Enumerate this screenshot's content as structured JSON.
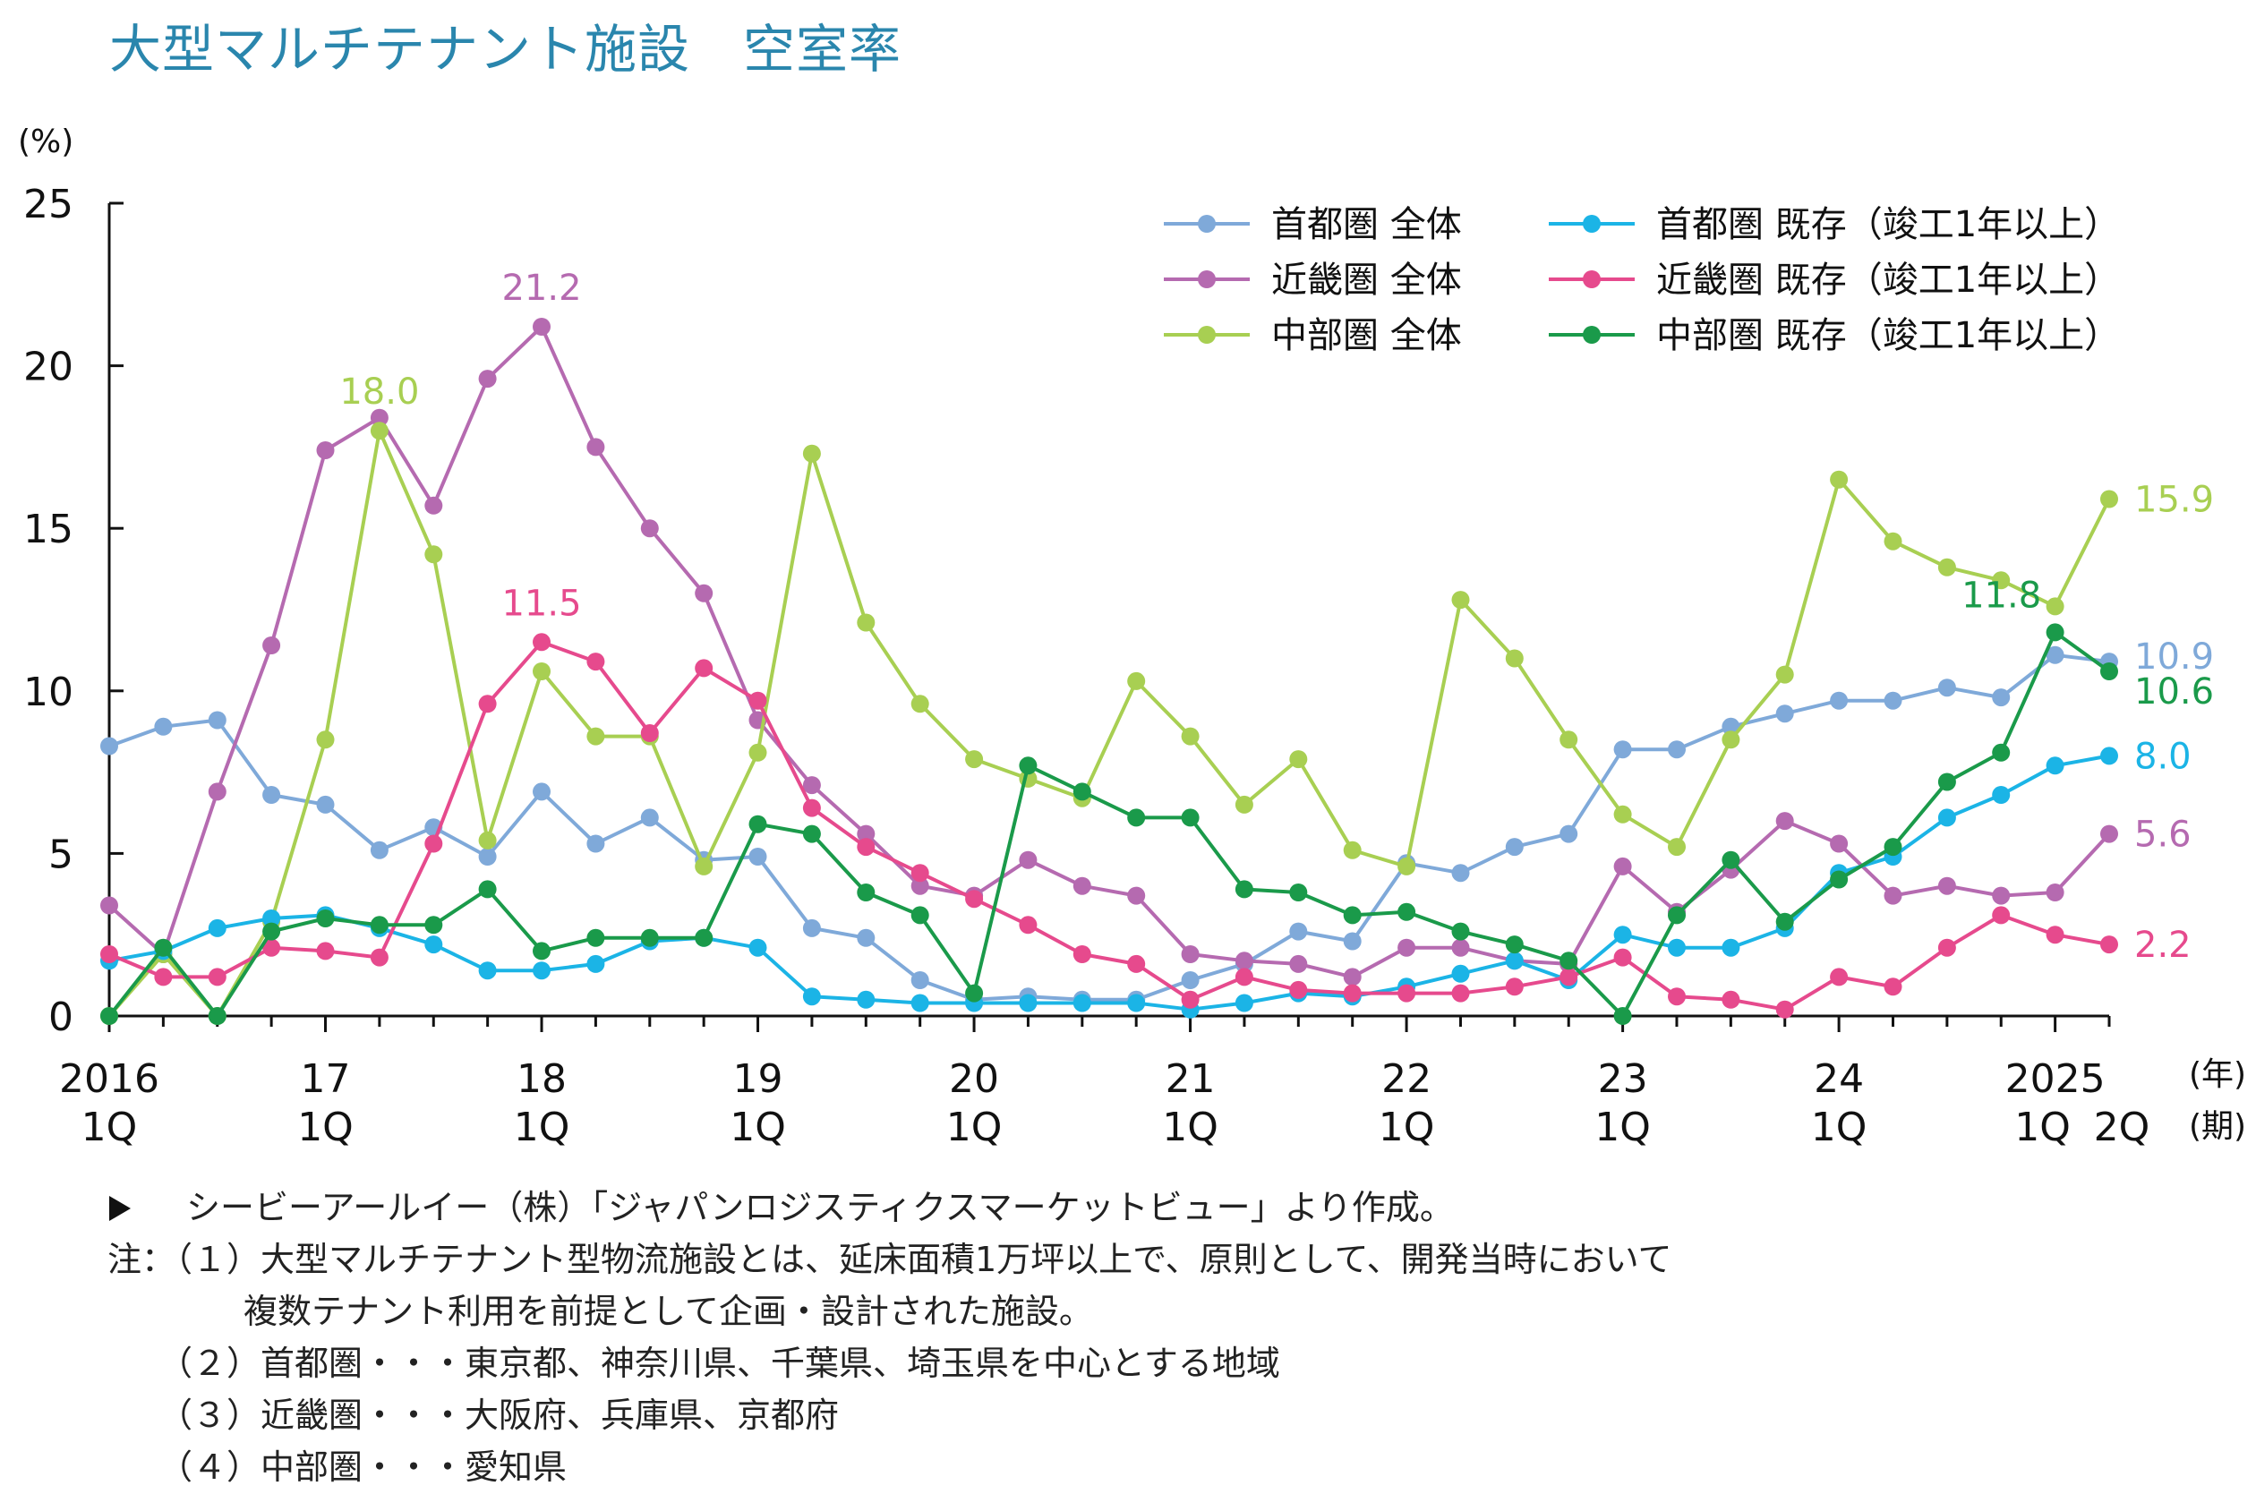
{
  "page_title": "大型マルチテナント施設　空室率",
  "source_line": "シービーアールイー（株）「ジャパンロジスティクスマーケットビュー」より作成。",
  "notes": [
    "注：（１）大型マルチテナント型物流施設とは、延床面積1万坪以上で、原則として、開発当時において",
    "　　　　複数テナント利用を前提として企画・設計された施設。",
    "　　（２）首都圏・・・東京都、神奈川県、千葉県、埼玉県を中心とする地域",
    "　　（３）近畿圏・・・大阪府、兵庫県、京都府",
    "　　（４）中部圏・・・愛知県"
  ],
  "chart_data": {
    "type": "line",
    "title": "大型マルチテナント施設　空室率",
    "ylabel": "(%)",
    "x_unit_year": "(年)",
    "x_unit_quarter": "(期)",
    "ylim": [
      0,
      25
    ],
    "yticks": [
      0,
      5,
      10,
      15,
      20,
      25
    ],
    "x_count": 38,
    "x_tick_labels": [
      {
        "index": 0,
        "year": "2016",
        "quarter": "1Q"
      },
      {
        "index": 4,
        "year": "17",
        "quarter": "1Q"
      },
      {
        "index": 8,
        "year": "18",
        "quarter": "1Q"
      },
      {
        "index": 12,
        "year": "19",
        "quarter": "1Q"
      },
      {
        "index": 16,
        "year": "20",
        "quarter": "1Q"
      },
      {
        "index": 20,
        "year": "21",
        "quarter": "1Q"
      },
      {
        "index": 24,
        "year": "22",
        "quarter": "1Q"
      },
      {
        "index": 28,
        "year": "23",
        "quarter": "1Q"
      },
      {
        "index": 32,
        "year": "24",
        "quarter": "1Q"
      },
      {
        "index": 36,
        "year": "2025",
        "quarter": "1Q"
      },
      {
        "index": 37,
        "year": "",
        "quarter": "2Q"
      }
    ],
    "series": [
      {
        "name": "首都圏 全体",
        "color": "#7fa9d9",
        "values": [
          8.3,
          8.9,
          9.1,
          6.8,
          6.5,
          5.1,
          5.8,
          4.9,
          6.9,
          5.3,
          6.1,
          4.8,
          4.9,
          2.7,
          2.4,
          1.1,
          0.5,
          0.6,
          0.5,
          0.5,
          1.1,
          1.6,
          2.6,
          2.3,
          4.7,
          4.4,
          5.2,
          5.6,
          8.2,
          8.2,
          8.9,
          9.3,
          9.7,
          9.7,
          10.1,
          9.8,
          11.1,
          10.9
        ]
      },
      {
        "name": "近畿圏 全体",
        "color": "#b56ab0",
        "values": [
          3.4,
          1.9,
          6.9,
          11.4,
          17.4,
          18.4,
          15.7,
          19.6,
          21.2,
          17.5,
          15.0,
          13.0,
          9.1,
          7.1,
          5.6,
          4.0,
          3.7,
          4.8,
          4.0,
          3.7,
          1.9,
          1.7,
          1.6,
          1.2,
          2.1,
          2.1,
          1.7,
          1.6,
          4.6,
          3.2,
          4.5,
          6.0,
          5.3,
          3.7,
          4.0,
          3.7,
          3.8,
          5.6
        ]
      },
      {
        "name": "中部圏 全体",
        "color": "#a8cf52",
        "values": [
          0.0,
          1.9,
          0.0,
          2.9,
          8.5,
          18.0,
          14.2,
          5.4,
          10.6,
          8.6,
          8.6,
          4.6,
          8.1,
          17.3,
          12.1,
          9.6,
          7.9,
          7.3,
          6.7,
          10.3,
          8.6,
          6.5,
          7.9,
          5.1,
          4.6,
          12.8,
          11.0,
          8.5,
          6.2,
          5.2,
          8.5,
          10.5,
          16.5,
          14.6,
          13.8,
          13.4,
          12.6,
          15.9
        ]
      },
      {
        "name": "首都圏 既存（竣工1年以上）",
        "color": "#1bb4e6",
        "values": [
          1.7,
          2.0,
          2.7,
          3.0,
          3.1,
          2.7,
          2.2,
          1.4,
          1.4,
          1.6,
          2.3,
          2.4,
          2.1,
          0.6,
          0.5,
          0.4,
          0.4,
          0.4,
          0.4,
          0.4,
          0.2,
          0.4,
          0.7,
          0.6,
          0.9,
          1.3,
          1.7,
          1.1,
          2.5,
          2.1,
          2.1,
          2.7,
          4.4,
          4.9,
          6.1,
          6.8,
          7.7,
          8.0
        ]
      },
      {
        "name": "近畿圏 既存（竣工1年以上）",
        "color": "#e64a8d",
        "values": [
          1.9,
          1.2,
          1.2,
          2.1,
          2.0,
          1.8,
          5.3,
          9.6,
          11.5,
          10.9,
          8.7,
          10.7,
          9.7,
          6.4,
          5.2,
          4.4,
          3.6,
          2.8,
          1.9,
          1.6,
          0.5,
          1.2,
          0.8,
          0.7,
          0.7,
          0.7,
          0.9,
          1.2,
          1.8,
          0.6,
          0.5,
          0.2,
          1.2,
          0.9,
          2.1,
          3.1,
          2.5,
          2.2
        ]
      },
      {
        "name": "中部圏 既存（竣工1年以上）",
        "color": "#1a9a4a",
        "values": [
          0.0,
          2.1,
          0.0,
          2.6,
          3.0,
          2.8,
          2.8,
          3.9,
          2.0,
          2.4,
          2.4,
          2.4,
          5.9,
          5.6,
          3.8,
          3.1,
          0.7,
          7.7,
          6.9,
          6.1,
          6.1,
          3.9,
          3.8,
          3.1,
          3.2,
          2.6,
          2.2,
          1.7,
          0.0,
          3.1,
          4.8,
          2.9,
          4.2,
          5.2,
          7.2,
          8.1,
          11.8,
          10.6
        ]
      }
    ],
    "annotations": [
      {
        "text": "21.2",
        "series": 1,
        "index": 8,
        "pos": "above"
      },
      {
        "text": "18.0",
        "series": 2,
        "index": 5,
        "pos": "above"
      },
      {
        "text": "11.5",
        "series": 4,
        "index": 8,
        "pos": "above"
      },
      {
        "text": "11.8",
        "series": 5,
        "index": 36,
        "pos": "above-left"
      },
      {
        "text": "15.9",
        "series": 2,
        "index": 37,
        "pos": "right"
      },
      {
        "text": "10.9",
        "series": 0,
        "index": 37,
        "pos": "right"
      },
      {
        "text": "10.6",
        "series": 5,
        "index": 37,
        "pos": "right"
      },
      {
        "text": "8.0",
        "series": 3,
        "index": 37,
        "pos": "right"
      },
      {
        "text": "5.6",
        "series": 1,
        "index": 37,
        "pos": "right"
      },
      {
        "text": "2.2",
        "series": 4,
        "index": 37,
        "pos": "right"
      }
    ],
    "legend": {
      "placement": "top-right",
      "columns": [
        [
          0,
          1,
          2
        ],
        [
          3,
          4,
          5
        ]
      ]
    }
  }
}
